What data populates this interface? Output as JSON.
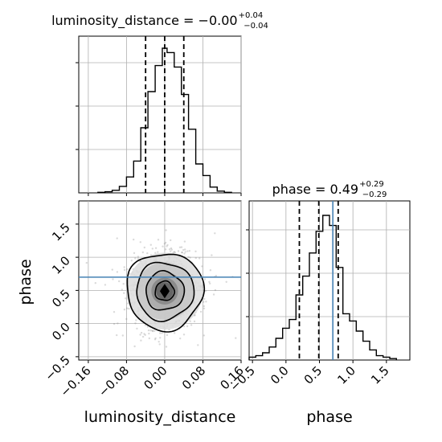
{
  "chart_data": {
    "type": "corner",
    "parameters": [
      "luminosity_distance",
      "phase"
    ],
    "axis_labels": {
      "x_left": "luminosity_distance",
      "x_right": "phase",
      "y_lower": "phase"
    },
    "titles": {
      "luminosity_distance": {
        "main": "luminosity_distance = −0.00",
        "sup": "+0.04",
        "sub": "−0.04"
      },
      "phase": {
        "main": "phase = 0.49",
        "sup": "+0.29",
        "sub": "−0.29"
      }
    },
    "ticks": {
      "luminosity_distance": {
        "values": [
          -0.16,
          -0.08,
          0.0,
          0.08,
          0.16
        ],
        "labels": [
          "−0.16",
          "−0.08",
          "0.00",
          "0.08",
          "0.16"
        ]
      },
      "phase_x": {
        "values": [
          -0.5,
          0.0,
          0.5,
          1.0,
          1.5
        ],
        "labels": [
          "−0.5",
          "0.0",
          "0.5",
          "1.0",
          "1.5"
        ]
      },
      "phase_y": {
        "values": [
          -0.5,
          0.0,
          0.5,
          1.0,
          1.5
        ],
        "labels": [
          "−0.5",
          "0.0",
          "0.5",
          "1.0",
          "1.5"
        ]
      }
    },
    "ranges": {
      "luminosity_distance": [
        -0.18,
        0.16
      ],
      "phase": [
        -0.55,
        1.85
      ]
    },
    "truth": {
      "phase": 0.7
    },
    "colors": {
      "truth": "#4682b4",
      "line": "#000000",
      "grid": "#b0b0b0"
    },
    "grid": true,
    "hist_luminosity_distance": {
      "quantiles": [
        -0.04,
        0.0,
        0.04
      ],
      "bin_edges": [
        -0.14,
        -0.125,
        -0.11,
        -0.095,
        -0.08,
        -0.065,
        -0.05,
        -0.035,
        -0.02,
        -0.005,
        0.005,
        0.02,
        0.035,
        0.05,
        0.065,
        0.08,
        0.095,
        0.11,
        0.125,
        0.14
      ],
      "values": [
        0.004,
        0.008,
        0.018,
        0.045,
        0.11,
        0.22,
        0.45,
        0.7,
        0.88,
        1.0,
        0.97,
        0.87,
        0.68,
        0.44,
        0.2,
        0.12,
        0.04,
        0.012,
        0.004
      ]
    },
    "hist_phase": {
      "quantiles": [
        0.2,
        0.49,
        0.78
      ],
      "bin_edges": [
        -0.55,
        -0.45,
        -0.35,
        -0.25,
        -0.15,
        -0.05,
        0.05,
        0.15,
        0.25,
        0.35,
        0.45,
        0.55,
        0.65,
        0.75,
        0.85,
        0.95,
        1.05,
        1.15,
        1.25,
        1.35,
        1.45,
        1.55,
        1.65
      ],
      "values": [
        0.02,
        0.03,
        0.05,
        0.09,
        0.15,
        0.22,
        0.28,
        0.45,
        0.58,
        0.74,
        0.89,
        1.0,
        0.93,
        0.64,
        0.32,
        0.27,
        0.2,
        0.13,
        0.07,
        0.03,
        0.02,
        0.01
      ]
    },
    "joint": {
      "center": [
        0.0,
        0.49
      ],
      "sigma": [
        0.04,
        0.29
      ],
      "contour_levels_sigma": [
        0.5,
        1.0,
        1.5,
        2.0
      ]
    }
  }
}
